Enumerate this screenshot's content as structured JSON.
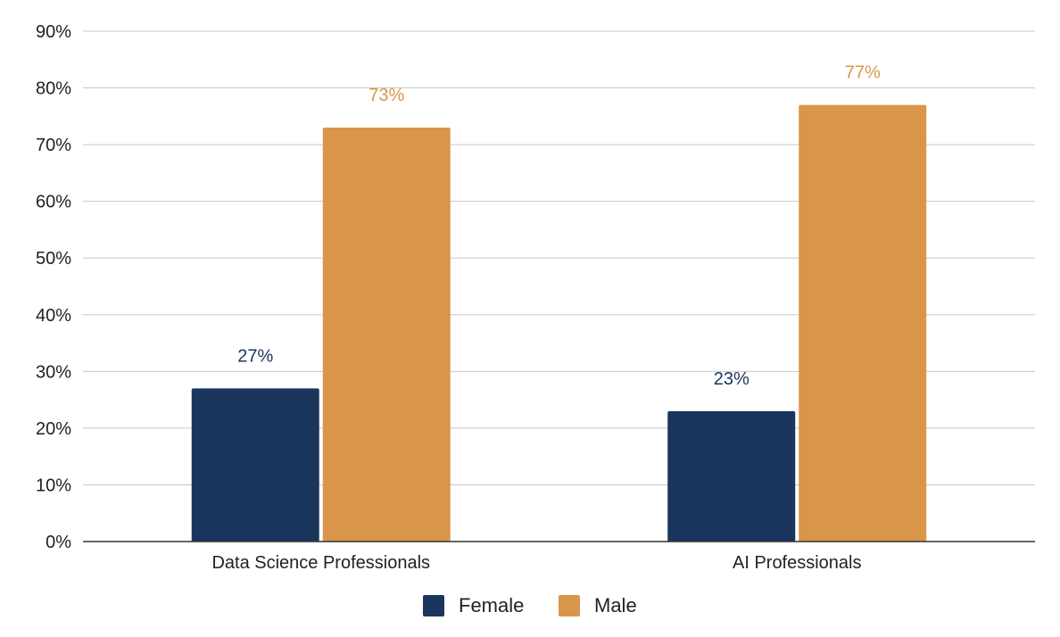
{
  "chart_data": {
    "type": "bar",
    "title": "",
    "xlabel": "",
    "ylabel": "",
    "categories": [
      "Data Science Professionals",
      "AI Professionals"
    ],
    "series": [
      {
        "name": "Female",
        "values": [
          27,
          23
        ],
        "labels": [
          "27%",
          "23%"
        ],
        "color": "#1a365d"
      },
      {
        "name": "Male",
        "values": [
          73,
          77
        ],
        "labels": [
          "73%",
          "77%"
        ],
        "color": "#d9964b"
      }
    ],
    "ylim": [
      0,
      90
    ],
    "yticks": [
      0,
      10,
      20,
      30,
      40,
      50,
      60,
      70,
      80,
      90
    ],
    "ytick_labels": [
      "0%",
      "10%",
      "20%",
      "30%",
      "40%",
      "50%",
      "60%",
      "70%",
      "80%",
      "90%"
    ],
    "grid": true,
    "legend_position": "bottom-center"
  }
}
